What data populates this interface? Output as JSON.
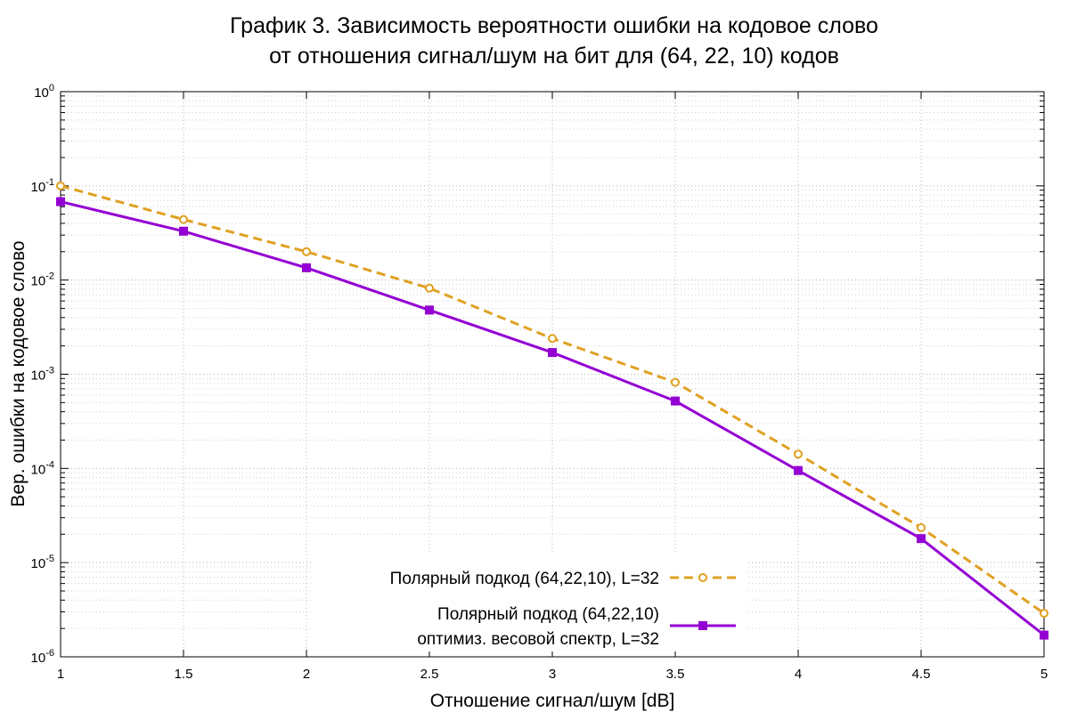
{
  "chart_data": {
    "type": "line",
    "title_lines": [
      "График 3. Зависимость вероятности ошибки на кодовое слово",
      "от отношения сигнал/шум на бит для (64, 22, 10) кодов"
    ],
    "xlabel": "Отношение сигнал/шум [dB]",
    "ylabel": "Вер. ошибки на кодовое слово",
    "xlim": [
      1,
      5
    ],
    "ylim": [
      1e-06,
      1
    ],
    "yscale": "log",
    "grid": true,
    "legend_position": "bottom-center",
    "x_ticks": [
      "1",
      "1.5",
      "2",
      "2.5",
      "3",
      "3.5",
      "4",
      "4.5",
      "5"
    ],
    "y_ticks": [
      {
        "base": "10",
        "exp": "0"
      },
      {
        "base": "10",
        "exp": "-1"
      },
      {
        "base": "10",
        "exp": "-2"
      },
      {
        "base": "10",
        "exp": "-3"
      },
      {
        "base": "10",
        "exp": "-4"
      },
      {
        "base": "10",
        "exp": "-5"
      },
      {
        "base": "10",
        "exp": "-6"
      }
    ],
    "series": [
      {
        "legend_lines": [
          "Полярный подкод (64,22,10), L=32"
        ],
        "color": "#e0a020",
        "style": "dashed",
        "marker": "circle",
        "x": [
          1,
          1.5,
          2,
          2.5,
          3,
          3.5,
          4,
          4.5,
          5
        ],
        "y": [
          0.1,
          0.044,
          0.02,
          0.0082,
          0.0024,
          0.00082,
          0.000142,
          2.35e-05,
          2.9e-06
        ]
      },
      {
        "legend_lines": [
          "Полярный подкод (64,22,10)",
          "оптимиз. весовой спектр, L=32"
        ],
        "color": "#9400d3",
        "style": "solid",
        "marker": "square",
        "x": [
          1,
          1.5,
          2,
          2.5,
          3,
          3.5,
          4,
          4.5,
          5
        ],
        "y": [
          0.068,
          0.033,
          0.0135,
          0.0048,
          0.0017,
          0.00052,
          9.5e-05,
          1.8e-05,
          1.7e-06
        ]
      }
    ]
  }
}
